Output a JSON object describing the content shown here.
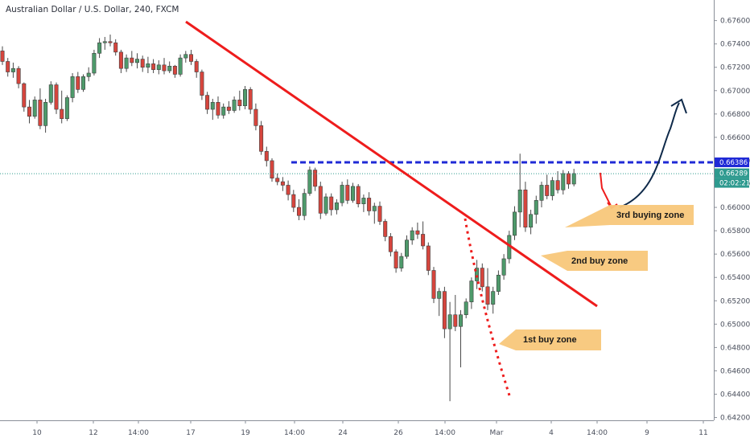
{
  "chart_data": {
    "type": "candlestick",
    "title": "Australian Dollar / U.S. Dollar, 240, FXCM",
    "xlabels": [
      "10",
      "12",
      "14:00",
      "17",
      "19",
      "14:00",
      "24",
      "26",
      "14:00",
      "Mar",
      "4",
      "14:00",
      "9",
      "11"
    ],
    "ylabels": [
      "0.67600",
      "0.67400",
      "0.67200",
      "0.67000",
      "0.66800",
      "0.66600",
      "0.66400",
      "0.66200",
      "0.66000",
      "0.65800",
      "0.65600",
      "0.65400",
      "0.65200",
      "0.65000",
      "0.64800",
      "0.64600",
      "0.64400",
      "0.64200"
    ],
    "ylim": [
      0.6419,
      0.6768
    ],
    "resistance_level": "0.66386",
    "current_price": "0.66289",
    "countdown": "02:02:21",
    "annotations": [
      "1st buy zone",
      "2nd buy zone",
      "3rd buying zone"
    ],
    "colors": {
      "up": "#4e9a6b",
      "down": "#d6453d",
      "trendline": "#ee1c1c",
      "resistance": "#1f2ad6",
      "projection": "#0f2a4a",
      "zone_box": "#f8c77a",
      "price_tag": "#2e9a8f"
    },
    "candles": [
      [
        0.6734,
        0.6738,
        0.6722,
        0.6725
      ],
      [
        0.6725,
        0.6728,
        0.6712,
        0.6716
      ],
      [
        0.6716,
        0.6724,
        0.6711,
        0.6719
      ],
      [
        0.6719,
        0.6721,
        0.6702,
        0.6706
      ],
      [
        0.6706,
        0.6707,
        0.6682,
        0.6686
      ],
      [
        0.6686,
        0.6692,
        0.6672,
        0.6678
      ],
      [
        0.6678,
        0.6695,
        0.6676,
        0.6692
      ],
      [
        0.6692,
        0.6702,
        0.6667,
        0.667
      ],
      [
        0.667,
        0.6693,
        0.6664,
        0.669
      ],
      [
        0.669,
        0.6708,
        0.6688,
        0.6705
      ],
      [
        0.6705,
        0.6707,
        0.668,
        0.6684
      ],
      [
        0.6684,
        0.67,
        0.6672,
        0.6676
      ],
      [
        0.6676,
        0.6696,
        0.6674,
        0.6694
      ],
      [
        0.6694,
        0.6715,
        0.669,
        0.6712
      ],
      [
        0.6712,
        0.6716,
        0.6698,
        0.6701
      ],
      [
        0.6701,
        0.6714,
        0.6699,
        0.6712
      ],
      [
        0.6712,
        0.672,
        0.6708,
        0.6715
      ],
      [
        0.6715,
        0.6735,
        0.6713,
        0.6732
      ],
      [
        0.6732,
        0.6745,
        0.6728,
        0.6741
      ],
      [
        0.6741,
        0.6746,
        0.6735,
        0.6742
      ],
      [
        0.6742,
        0.6748,
        0.6738,
        0.6741
      ],
      [
        0.6741,
        0.6744,
        0.673,
        0.6733
      ],
      [
        0.6733,
        0.6735,
        0.6715,
        0.6719
      ],
      [
        0.6719,
        0.6731,
        0.6716,
        0.6728
      ],
      [
        0.6728,
        0.6734,
        0.6721,
        0.6724
      ],
      [
        0.6724,
        0.6732,
        0.6719,
        0.6727
      ],
      [
        0.6727,
        0.673,
        0.6716,
        0.672
      ],
      [
        0.672,
        0.6729,
        0.6715,
        0.6723
      ],
      [
        0.6723,
        0.6727,
        0.6715,
        0.6718
      ],
      [
        0.6718,
        0.6726,
        0.6714,
        0.6722
      ],
      [
        0.6722,
        0.6728,
        0.6714,
        0.6717
      ],
      [
        0.6717,
        0.6725,
        0.6715,
        0.6721
      ],
      [
        0.6721,
        0.6722,
        0.6711,
        0.6714
      ],
      [
        0.6714,
        0.6731,
        0.6712,
        0.6728
      ],
      [
        0.6728,
        0.6734,
        0.6724,
        0.6731
      ],
      [
        0.6731,
        0.6735,
        0.6722,
        0.6725
      ],
      [
        0.6725,
        0.6727,
        0.6711,
        0.6716
      ],
      [
        0.6716,
        0.6718,
        0.6692,
        0.6696
      ],
      [
        0.6696,
        0.6699,
        0.668,
        0.6684
      ],
      [
        0.6684,
        0.6693,
        0.6675,
        0.669
      ],
      [
        0.669,
        0.6695,
        0.6676,
        0.6679
      ],
      [
        0.6679,
        0.6689,
        0.6676,
        0.6686
      ],
      [
        0.6686,
        0.6691,
        0.668,
        0.6683
      ],
      [
        0.6683,
        0.6695,
        0.6681,
        0.6692
      ],
      [
        0.6692,
        0.67,
        0.6683,
        0.6687
      ],
      [
        0.6687,
        0.6704,
        0.6684,
        0.6701
      ],
      [
        0.6701,
        0.6703,
        0.668,
        0.6684
      ],
      [
        0.6684,
        0.6689,
        0.6666,
        0.667
      ],
      [
        0.667,
        0.6674,
        0.6645,
        0.6648
      ],
      [
        0.6648,
        0.6652,
        0.6635,
        0.664
      ],
      [
        0.664,
        0.6642,
        0.6622,
        0.6625
      ],
      [
        0.6625,
        0.6629,
        0.6619,
        0.6622
      ],
      [
        0.6622,
        0.6626,
        0.6614,
        0.6619
      ],
      [
        0.6619,
        0.6623,
        0.6606,
        0.6611
      ],
      [
        0.6611,
        0.6615,
        0.6596,
        0.66
      ],
      [
        0.66,
        0.6607,
        0.6589,
        0.6593
      ],
      [
        0.6593,
        0.6616,
        0.6589,
        0.6612
      ],
      [
        0.6612,
        0.6635,
        0.661,
        0.6632
      ],
      [
        0.6632,
        0.6634,
        0.6614,
        0.6618
      ],
      [
        0.6618,
        0.6622,
        0.659,
        0.6595
      ],
      [
        0.6595,
        0.6612,
        0.6593,
        0.6609
      ],
      [
        0.6609,
        0.6612,
        0.6593,
        0.6598
      ],
      [
        0.6598,
        0.6607,
        0.6594,
        0.6604
      ],
      [
        0.6604,
        0.6622,
        0.6601,
        0.6619
      ],
      [
        0.6619,
        0.6624,
        0.6603,
        0.6606
      ],
      [
        0.6606,
        0.6621,
        0.6604,
        0.6618
      ],
      [
        0.6618,
        0.662,
        0.66,
        0.6603
      ],
      [
        0.6603,
        0.6611,
        0.6596,
        0.6608
      ],
      [
        0.6608,
        0.6613,
        0.6593,
        0.6597
      ],
      [
        0.6597,
        0.6604,
        0.6586,
        0.6601
      ],
      [
        0.6601,
        0.6605,
        0.6585,
        0.6588
      ],
      [
        0.6588,
        0.659,
        0.6571,
        0.6575
      ],
      [
        0.6575,
        0.6578,
        0.6558,
        0.6562
      ],
      [
        0.6562,
        0.6564,
        0.6544,
        0.6548
      ],
      [
        0.6548,
        0.6561,
        0.6545,
        0.6558
      ],
      [
        0.6558,
        0.6576,
        0.6556,
        0.6572
      ],
      [
        0.6572,
        0.6583,
        0.6568,
        0.658
      ],
      [
        0.658,
        0.6587,
        0.6573,
        0.6577
      ],
      [
        0.6577,
        0.6588,
        0.6564,
        0.6567
      ],
      [
        0.6567,
        0.657,
        0.6542,
        0.6546
      ],
      [
        0.6546,
        0.6549,
        0.6518,
        0.6522
      ],
      [
        0.6522,
        0.6531,
        0.6507,
        0.6528
      ],
      [
        0.6528,
        0.6532,
        0.6488,
        0.6496
      ],
      [
        0.6496,
        0.6519,
        0.6434,
        0.6508
      ],
      [
        0.6508,
        0.6525,
        0.6494,
        0.6498
      ],
      [
        0.6498,
        0.6512,
        0.6463,
        0.6508
      ],
      [
        0.6508,
        0.6522,
        0.6505,
        0.6519
      ],
      [
        0.6519,
        0.654,
        0.6513,
        0.6537
      ],
      [
        0.6537,
        0.6555,
        0.653,
        0.6548
      ],
      [
        0.6548,
        0.6552,
        0.6528,
        0.6532
      ],
      [
        0.6532,
        0.6548,
        0.6512,
        0.6517
      ],
      [
        0.6517,
        0.6532,
        0.6509,
        0.6528
      ],
      [
        0.6528,
        0.6546,
        0.6525,
        0.6542
      ],
      [
        0.6542,
        0.656,
        0.6538,
        0.6556
      ],
      [
        0.6556,
        0.658,
        0.6552,
        0.6576
      ],
      [
        0.6576,
        0.6601,
        0.6572,
        0.6596
      ],
      [
        0.6596,
        0.6646,
        0.6583,
        0.6615
      ],
      [
        0.6615,
        0.6622,
        0.6579,
        0.6583
      ],
      [
        0.6583,
        0.6598,
        0.6577,
        0.6594
      ],
      [
        0.6594,
        0.661,
        0.6586,
        0.6606
      ],
      [
        0.6606,
        0.6622,
        0.66,
        0.6619
      ],
      [
        0.6619,
        0.6628,
        0.6607,
        0.661
      ],
      [
        0.661,
        0.6626,
        0.6606,
        0.6623
      ],
      [
        0.6623,
        0.6631,
        0.6612,
        0.6615
      ],
      [
        0.6615,
        0.6632,
        0.6611,
        0.6629
      ],
      [
        0.6629,
        0.6631,
        0.6616,
        0.662
      ],
      [
        0.662,
        0.6633,
        0.6618,
        0.6629
      ]
    ]
  }
}
